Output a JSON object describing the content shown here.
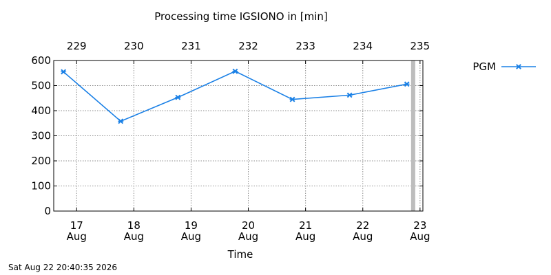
{
  "chart_data": {
    "type": "line",
    "title": "Processing time IGSIONO in [min]",
    "xlabel": "Time",
    "ylabel": "",
    "x_day_values": [
      16.77,
      17.77,
      18.77,
      19.77,
      20.77,
      21.77,
      22.77
    ],
    "series": [
      {
        "name": "PGM",
        "color": "#1a80e6",
        "marker": "x",
        "values": [
          555,
          358,
          453,
          557,
          445,
          462,
          506
        ]
      }
    ],
    "ylim": [
      0,
      600
    ],
    "yticks": [
      0,
      100,
      200,
      300,
      400,
      500,
      600
    ],
    "xlim": [
      16.6,
      23.05
    ],
    "x_bottom_ticks": [
      {
        "value": 17,
        "day": "17",
        "month": "Aug"
      },
      {
        "value": 18,
        "day": "18",
        "month": "Aug"
      },
      {
        "value": 19,
        "day": "19",
        "month": "Aug"
      },
      {
        "value": 20,
        "day": "20",
        "month": "Aug"
      },
      {
        "value": 21,
        "day": "21",
        "month": "Aug"
      },
      {
        "value": 22,
        "day": "22",
        "month": "Aug"
      },
      {
        "value": 23,
        "day": "23",
        "month": "Aug"
      }
    ],
    "x_top_ticks": [
      {
        "value": 17,
        "label": "229"
      },
      {
        "value": 18,
        "label": "230"
      },
      {
        "value": 19,
        "label": "231"
      },
      {
        "value": 20,
        "label": "232"
      },
      {
        "value": 21,
        "label": "233"
      },
      {
        "value": 22,
        "label": "234"
      },
      {
        "value": 23,
        "label": "235"
      }
    ],
    "now_marker_value": 22.88,
    "grid": true,
    "legend_position": "right"
  },
  "timestamp": "Sat Aug 22 20:40:35 2026"
}
